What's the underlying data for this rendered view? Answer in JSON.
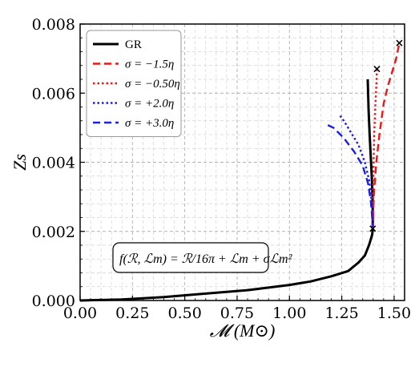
{
  "chart_data": {
    "type": "line",
    "xlabel": "𝓜 (M⊙)",
    "ylabel": "Zs",
    "xlim": [
      0.0,
      1.55
    ],
    "ylim": [
      0.0,
      0.008
    ],
    "xticks": [
      "0.00",
      "0.25",
      "0.50",
      "0.75",
      "1.00",
      "1.25",
      "1.50"
    ],
    "yticks": [
      "0.000",
      "0.002",
      "0.004",
      "0.006",
      "0.008"
    ],
    "grid": true,
    "legend_position": "top-left",
    "annotation": "f(ℛ, ℒm) = ℛ/16π + ℒm + σℒm²",
    "series": [
      {
        "name": "GR",
        "color": "#000000",
        "dash": "solid",
        "x": [
          0.0,
          0.2,
          0.4,
          0.6,
          0.8,
          1.0,
          1.1,
          1.2,
          1.28,
          1.33,
          1.36,
          1.38,
          1.39,
          1.395,
          1.398,
          1.398,
          1.397,
          1.393,
          1.388,
          1.383,
          1.378,
          1.374
        ],
        "y": [
          0.0,
          3e-05,
          0.0001,
          0.0002,
          0.0003,
          0.00045,
          0.00055,
          0.0007,
          0.00085,
          0.0011,
          0.0013,
          0.0016,
          0.0018,
          0.0019,
          0.00205,
          0.0025,
          0.003,
          0.0036,
          0.0042,
          0.0048,
          0.0055,
          0.0064
        ]
      },
      {
        "name": "σ = −1.5η",
        "color": "#e41a1c",
        "dash": "dashed",
        "x": [
          1.398,
          1.4,
          1.405,
          1.415,
          1.43,
          1.45,
          1.47,
          1.49,
          1.51,
          1.525
        ],
        "y": [
          0.00205,
          0.0026,
          0.0032,
          0.004,
          0.0048,
          0.0057,
          0.0062,
          0.0066,
          0.007,
          0.00745
        ]
      },
      {
        "name": "σ = −0.50η",
        "color": "#e41a1c",
        "dash": "dotted",
        "x": [
          1.398,
          1.399,
          1.4,
          1.402,
          1.405,
          1.41,
          1.415,
          1.418
        ],
        "y": [
          0.00205,
          0.0026,
          0.0032,
          0.004,
          0.0048,
          0.0056,
          0.0062,
          0.0067
        ]
      },
      {
        "name": "σ = +2.0η",
        "color": "#1f1fdd",
        "dash": "dotted",
        "x": [
          1.398,
          1.395,
          1.39,
          1.38,
          1.36,
          1.33,
          1.29,
          1.26,
          1.235
        ],
        "y": [
          0.00205,
          0.0026,
          0.003,
          0.0035,
          0.004,
          0.0045,
          0.0049,
          0.0052,
          0.0054
        ]
      },
      {
        "name": "σ = +3.0η",
        "color": "#1f1fdd",
        "dash": "dashed",
        "x": [
          1.398,
          1.394,
          1.388,
          1.375,
          1.35,
          1.31,
          1.26,
          1.21,
          1.175
        ],
        "y": [
          0.00205,
          0.0025,
          0.0029,
          0.0034,
          0.0039,
          0.0043,
          0.0047,
          0.005,
          0.0051
        ]
      }
    ],
    "markers": [
      {
        "x": 1.398,
        "y": 0.00208,
        "symbol": "x"
      },
      {
        "x": 1.418,
        "y": 0.0067,
        "symbol": "x"
      },
      {
        "x": 1.525,
        "y": 0.00745,
        "symbol": "x"
      }
    ]
  }
}
